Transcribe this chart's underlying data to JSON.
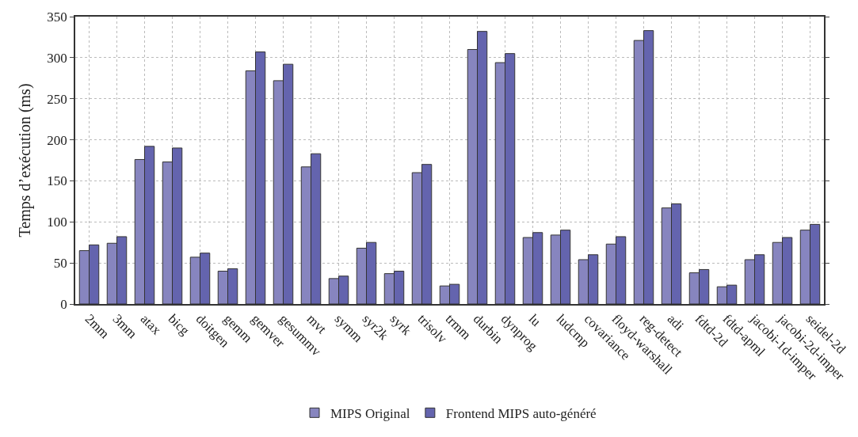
{
  "chart_data": {
    "type": "bar",
    "ylabel": "Temps d’exécution (ms)",
    "categories": [
      "2mm",
      "3mm",
      "atax",
      "bicg",
      "doitgen",
      "gemm",
      "gemver",
      "gesummv",
      "mvt",
      "symm",
      "syr2k",
      "syrk",
      "trisolv",
      "trmm",
      "durbin",
      "dynprog",
      "lu",
      "ludcmp",
      "covariance",
      "floyd-warshall",
      "reg-detect",
      "adi",
      "fdtd-2d",
      "fdtd-apml",
      "jacobi-1d-imper",
      "jacobi-2d-imper",
      "seidel-2d"
    ],
    "series": [
      {
        "name": "MIPS Original",
        "color": "#8785bf",
        "values": [
          65,
          74,
          176,
          173,
          57,
          40,
          284,
          272,
          167,
          31,
          68,
          37,
          160,
          22,
          310,
          294,
          81,
          84,
          54,
          73,
          321,
          117,
          38,
          21,
          54,
          75,
          90
        ]
      },
      {
        "name": "Frontend MIPS auto-généré",
        "color": "#6464ae",
        "values": [
          72,
          82,
          192,
          190,
          62,
          43,
          307,
          292,
          183,
          34,
          75,
          40,
          170,
          24,
          332,
          305,
          87,
          90,
          60,
          82,
          333,
          122,
          42,
          23,
          60,
          81,
          97
        ]
      }
    ],
    "ylim": [
      0,
      350
    ],
    "yticks": [
      0,
      50,
      100,
      150,
      200,
      250,
      300,
      350
    ],
    "grid": true,
    "legend": "bottom"
  }
}
